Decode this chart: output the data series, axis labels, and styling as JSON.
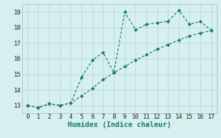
{
  "title": "",
  "xlabel": "Humidex (Indice chaleur)",
  "ylabel": "",
  "bg_color": "#d6f0f0",
  "grid_color": "#c0d8d8",
  "line_color": "#1a7a6a",
  "series1_x": [
    0,
    1,
    2,
    3,
    4,
    5,
    6,
    7,
    8,
    9,
    10,
    11,
    12,
    13,
    14,
    15,
    16,
    17
  ],
  "series1_y": [
    13.0,
    12.85,
    13.1,
    13.0,
    13.15,
    14.8,
    15.9,
    16.4,
    15.1,
    19.0,
    17.85,
    18.2,
    18.3,
    18.4,
    19.1,
    18.2,
    18.4,
    17.8
  ],
  "series2_x": [
    0,
    1,
    2,
    3,
    4,
    5,
    6,
    7,
    8,
    9,
    10,
    11,
    12,
    13,
    14,
    15,
    16,
    17
  ],
  "series2_y": [
    13.0,
    12.85,
    13.1,
    13.0,
    13.15,
    13.6,
    14.1,
    14.65,
    15.1,
    15.5,
    15.9,
    16.25,
    16.6,
    16.9,
    17.2,
    17.45,
    17.65,
    17.8
  ],
  "xlim": [
    -0.5,
    17.5
  ],
  "ylim": [
    12.5,
    19.5
  ],
  "yticks": [
    13,
    14,
    15,
    16,
    17,
    18,
    19
  ],
  "xticks": [
    0,
    1,
    2,
    3,
    4,
    5,
    6,
    7,
    8,
    9,
    10,
    11,
    12,
    13,
    14,
    15,
    16,
    17
  ],
  "tick_fontsize": 6.5,
  "xlabel_fontsize": 7.5,
  "line_width": 0.9,
  "marker_size": 2.8
}
